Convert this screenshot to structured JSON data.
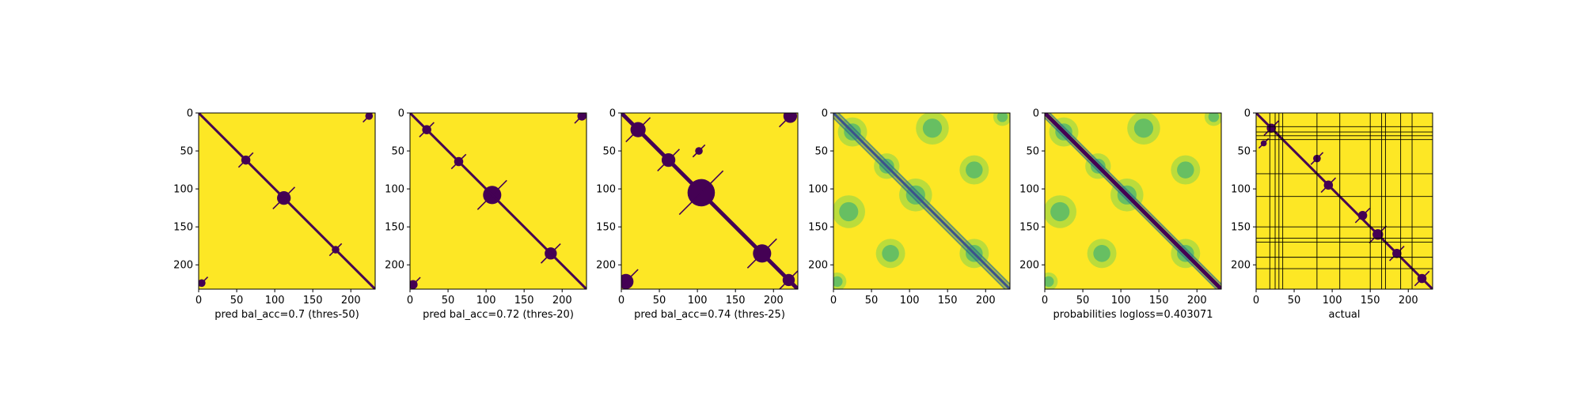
{
  "figure": {
    "background": "#ffffff",
    "colormap": "viridis",
    "low_color": "#440154",
    "high_color": "#fde725"
  },
  "chart_data": [
    {
      "type": "heatmap",
      "xlabel": "pred bal_acc=0.7 (thres-50)",
      "xticks": [
        0,
        50,
        100,
        150,
        200
      ],
      "yticks": [
        0,
        50,
        100,
        150,
        200
      ],
      "xlim": [
        0,
        232
      ],
      "ylim": [
        232,
        0
      ],
      "value_type": "binary",
      "diagonal_band": "thin",
      "blobs": [
        {
          "i": 62,
          "j": 62,
          "r": 6
        },
        {
          "i": 112,
          "j": 112,
          "r": 9
        },
        {
          "i": 180,
          "j": 180,
          "r": 5
        },
        {
          "i": 4,
          "j": 224,
          "r": 5
        },
        {
          "i": 224,
          "j": 4,
          "r": 5
        }
      ]
    },
    {
      "type": "heatmap",
      "xlabel": "pred bal_acc=0.72 (thres-20)",
      "xticks": [
        0,
        50,
        100,
        150,
        200
      ],
      "yticks": [
        0,
        50,
        100,
        150,
        200
      ],
      "xlim": [
        0,
        232
      ],
      "ylim": [
        232,
        0
      ],
      "value_type": "binary",
      "diagonal_band": "thin",
      "blobs": [
        {
          "i": 22,
          "j": 22,
          "r": 6
        },
        {
          "i": 64,
          "j": 64,
          "r": 6
        },
        {
          "i": 108,
          "j": 108,
          "r": 12
        },
        {
          "i": 185,
          "j": 185,
          "r": 8
        },
        {
          "i": 4,
          "j": 226,
          "r": 6
        },
        {
          "i": 226,
          "j": 4,
          "r": 6
        }
      ]
    },
    {
      "type": "heatmap",
      "xlabel": "pred bal_acc=0.74 (thres-25)",
      "xticks": [
        0,
        50,
        100,
        150,
        200
      ],
      "yticks": [
        0,
        50,
        100,
        150,
        200
      ],
      "xlim": [
        0,
        232
      ],
      "ylim": [
        232,
        0
      ],
      "value_type": "binary",
      "diagonal_band": "thick",
      "blobs": [
        {
          "i": 22,
          "j": 22,
          "r": 10
        },
        {
          "i": 62,
          "j": 62,
          "r": 9
        },
        {
          "i": 105,
          "j": 105,
          "r": 18
        },
        {
          "i": 185,
          "j": 185,
          "r": 12
        },
        {
          "i": 220,
          "j": 220,
          "r": 8
        },
        {
          "i": 4,
          "j": 222,
          "r": 9
        },
        {
          "i": 222,
          "j": 6,
          "r": 10
        },
        {
          "i": 50,
          "j": 102,
          "r": 5
        }
      ]
    },
    {
      "type": "heatmap",
      "xlabel": "",
      "xticks": [
        0,
        50,
        100,
        150,
        200
      ],
      "yticks": [
        0,
        50,
        100,
        150,
        200
      ],
      "xlim": [
        0,
        232
      ],
      "ylim": [
        232,
        0
      ],
      "value_type": "continuous",
      "diagonal_band": "thin",
      "blobs": [
        {
          "i": 25,
          "j": 25,
          "r": 16
        },
        {
          "i": 70,
          "j": 70,
          "r": 14
        },
        {
          "i": 108,
          "j": 108,
          "r": 18
        },
        {
          "i": 185,
          "j": 185,
          "r": 16
        },
        {
          "i": 5,
          "j": 222,
          "r": 10
        },
        {
          "i": 222,
          "j": 5,
          "r": 10
        },
        {
          "i": 20,
          "j": 130,
          "r": 18
        },
        {
          "i": 130,
          "j": 20,
          "r": 18
        },
        {
          "i": 75,
          "j": 185,
          "r": 16
        },
        {
          "i": 185,
          "j": 75,
          "r": 16
        }
      ]
    },
    {
      "type": "heatmap",
      "xlabel": "probabilities logloss=0.403071",
      "xticks": [
        0,
        50,
        100,
        150,
        200
      ],
      "yticks": [
        0,
        50,
        100,
        150,
        200
      ],
      "xlim": [
        0,
        232
      ],
      "ylim": [
        232,
        0
      ],
      "value_type": "continuous",
      "diagonal_band": "thick",
      "blobs": [
        {
          "i": 25,
          "j": 25,
          "r": 16
        },
        {
          "i": 70,
          "j": 70,
          "r": 14
        },
        {
          "i": 108,
          "j": 108,
          "r": 18
        },
        {
          "i": 185,
          "j": 185,
          "r": 16
        },
        {
          "i": 5,
          "j": 222,
          "r": 10
        },
        {
          "i": 222,
          "j": 5,
          "r": 10
        },
        {
          "i": 20,
          "j": 130,
          "r": 18
        },
        {
          "i": 130,
          "j": 20,
          "r": 18
        },
        {
          "i": 75,
          "j": 185,
          "r": 16
        },
        {
          "i": 185,
          "j": 75,
          "r": 16
        }
      ]
    },
    {
      "type": "heatmap",
      "xlabel": "actual",
      "xticks": [
        0,
        50,
        100,
        150,
        200
      ],
      "yticks": [
        0,
        50,
        100,
        150,
        200
      ],
      "xlim": [
        0,
        232
      ],
      "ylim": [
        232,
        0
      ],
      "value_type": "binary",
      "diagonal_band": "thin",
      "grid_lines": [
        18,
        25,
        30,
        35,
        80,
        110,
        150,
        165,
        170,
        190,
        205
      ],
      "blobs": [
        {
          "i": 20,
          "j": 20,
          "r": 6
        },
        {
          "i": 40,
          "j": 10,
          "r": 4
        },
        {
          "i": 60,
          "j": 80,
          "r": 5
        },
        {
          "i": 95,
          "j": 95,
          "r": 6
        },
        {
          "i": 135,
          "j": 140,
          "r": 6
        },
        {
          "i": 160,
          "j": 160,
          "r": 7
        },
        {
          "i": 185,
          "j": 185,
          "r": 6
        },
        {
          "i": 218,
          "j": 218,
          "r": 6
        }
      ]
    }
  ]
}
